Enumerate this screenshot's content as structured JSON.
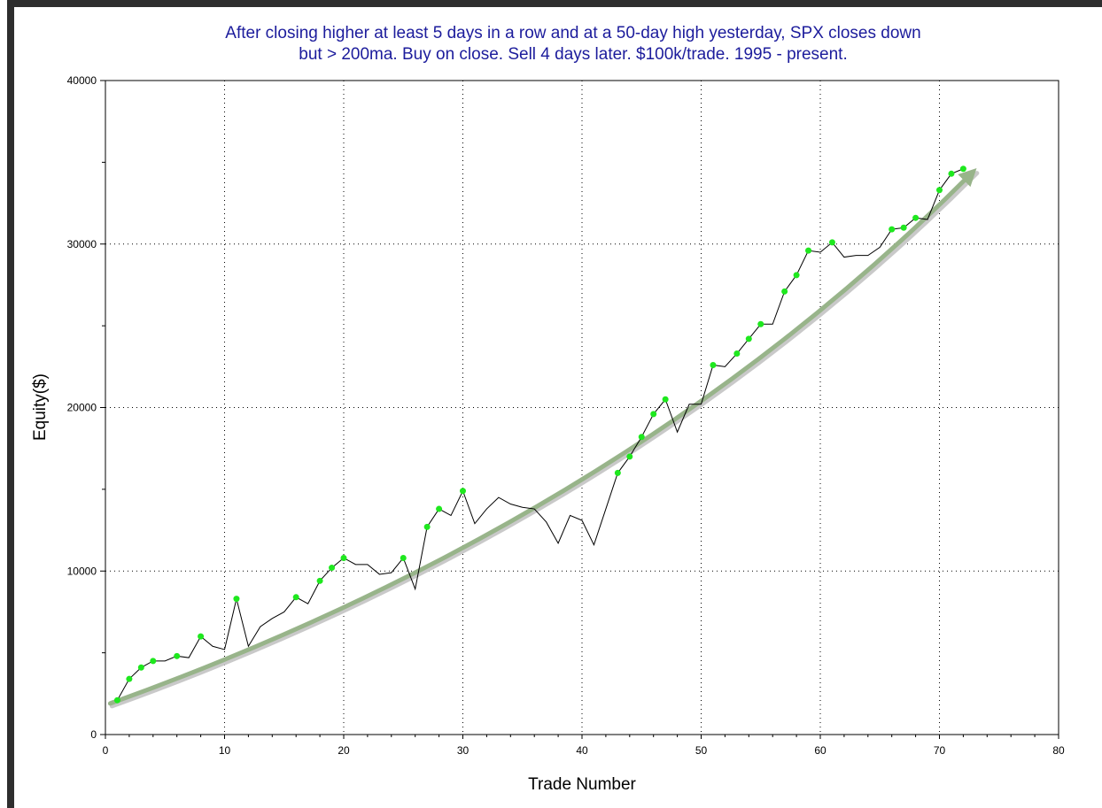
{
  "chart_data": {
    "type": "line",
    "title_lines": [
      "After closing higher at least 5 days in a row and at a 50-day high yesterday, SPX closes down",
      "but > 200ma. Buy on close. Sell 4 days later. $100k/trade. 1995 - present."
    ],
    "xlabel": "Trade Number",
    "ylabel": "Equity($)",
    "xlim": [
      0,
      80
    ],
    "ylim": [
      0,
      40000
    ],
    "x_ticks": [
      0,
      10,
      20,
      30,
      40,
      50,
      60,
      70,
      80
    ],
    "y_ticks": [
      0,
      10000,
      20000,
      30000,
      40000
    ],
    "x_tick_labels": [
      "0",
      "10",
      "20",
      "30",
      "40",
      "50",
      "60",
      "70",
      "80"
    ],
    "y_tick_labels": [
      "0",
      "10000",
      "20000",
      "30000",
      "40000"
    ],
    "grid": "dotted",
    "colors": {
      "title": "#1c1c9c",
      "line": "#000000",
      "marker": "#1ee81e",
      "trend": "#98b48a"
    },
    "series": [
      {
        "x": [
          1,
          2,
          3,
          4,
          5,
          6,
          7,
          8,
          9,
          10,
          11,
          12,
          13,
          14,
          15,
          16,
          17,
          18,
          19,
          20,
          21,
          22,
          23,
          24,
          25,
          26,
          27,
          28,
          29,
          30,
          31,
          32,
          33,
          34,
          35,
          36,
          37,
          38,
          39,
          40,
          41,
          42,
          43,
          44,
          45,
          46,
          47,
          48,
          49,
          50,
          51,
          52,
          53,
          54,
          55,
          56,
          57,
          58,
          59,
          60,
          61,
          62,
          63,
          64,
          65,
          66,
          67,
          68,
          69,
          70,
          71,
          72
        ],
        "y": [
          2100,
          3400,
          4100,
          4500,
          4500,
          4800,
          4700,
          6000,
          5400,
          5200,
          8300,
          5400,
          6600,
          7100,
          7500,
          8400,
          8000,
          9400,
          10200,
          10800,
          10400,
          10400,
          9800,
          9900,
          10800,
          8900,
          12700,
          13800,
          13400,
          14900,
          12900,
          13800,
          14500,
          14100,
          13900,
          13800,
          13000,
          11700,
          13400,
          13100,
          11600,
          13800,
          16000,
          17000,
          18200,
          19600,
          20500,
          18500,
          20200,
          20200,
          22600,
          22500,
          23300,
          24200,
          25100,
          25100,
          27100,
          28100,
          29600,
          29500,
          30100,
          29200,
          29300,
          29300,
          29800,
          30900,
          31000,
          31600,
          31500,
          33300,
          34300,
          34600
        ]
      }
    ],
    "marker_x": [
      1,
      2,
      3,
      4,
      6,
      8,
      11,
      16,
      18,
      19,
      20,
      25,
      27,
      28,
      30,
      43,
      44,
      45,
      46,
      47,
      51,
      53,
      54,
      55,
      57,
      58,
      59,
      61,
      66,
      67,
      68,
      70,
      71,
      72
    ],
    "trend": {
      "x": [
        0.4,
        73
      ],
      "y": [
        1900,
        34500
      ],
      "shape": "convex-curve"
    }
  }
}
